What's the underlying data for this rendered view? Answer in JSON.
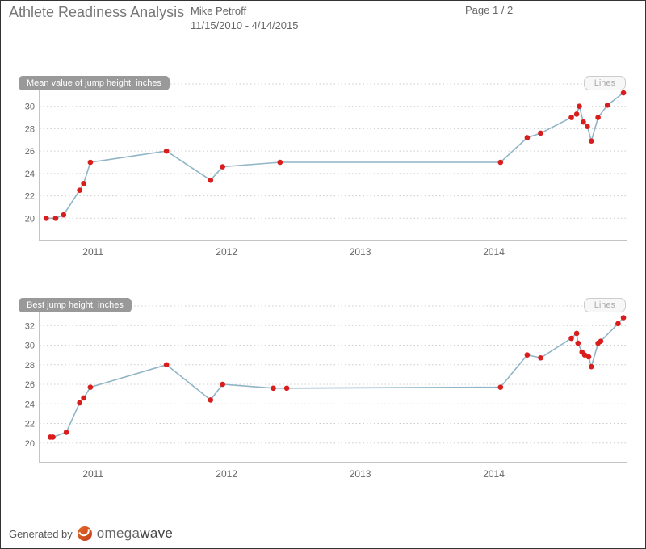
{
  "header": {
    "title": "Athlete Readiness Analysis",
    "athlete": "Mike Petroff",
    "date_range": "11/15/2010 - 4/14/2015",
    "page_label": "Page 1 / 2"
  },
  "chart1": {
    "label": "Mean value of jump height, inches",
    "lines_btn": "Lines",
    "type": "line",
    "line_color": "#90b5c7",
    "marker_color": "#d91c1c",
    "grid_color": "#cccccc",
    "axis_color": "#888888",
    "line_width": 1.6,
    "marker_radius": 3.3,
    "ylim": [
      18,
      32
    ],
    "ytick_step": 2,
    "x_start_year": 2010.6,
    "x_end_year": 2015.0,
    "x_ticks": [
      2011,
      2012,
      2013,
      2014
    ],
    "points": [
      {
        "t": 2010.65,
        "y": 20.0
      },
      {
        "t": 2010.72,
        "y": 20.0
      },
      {
        "t": 2010.78,
        "y": 20.3
      },
      {
        "t": 2010.9,
        "y": 22.5
      },
      {
        "t": 2010.93,
        "y": 23.1
      },
      {
        "t": 2010.98,
        "y": 25.0
      },
      {
        "t": 2011.55,
        "y": 26.0
      },
      {
        "t": 2011.88,
        "y": 23.4
      },
      {
        "t": 2011.97,
        "y": 24.6
      },
      {
        "t": 2012.4,
        "y": 25.0
      },
      {
        "t": 2014.05,
        "y": 25.0
      },
      {
        "t": 2014.25,
        "y": 27.2
      },
      {
        "t": 2014.35,
        "y": 27.6
      },
      {
        "t": 2014.58,
        "y": 29.0
      },
      {
        "t": 2014.62,
        "y": 29.3
      },
      {
        "t": 2014.64,
        "y": 30.0
      },
      {
        "t": 2014.67,
        "y": 28.6
      },
      {
        "t": 2014.7,
        "y": 28.2
      },
      {
        "t": 2014.73,
        "y": 26.9
      },
      {
        "t": 2014.78,
        "y": 29.0
      },
      {
        "t": 2014.85,
        "y": 30.1
      },
      {
        "t": 2014.97,
        "y": 31.2
      }
    ]
  },
  "chart2": {
    "label": "Best jump height, inches",
    "lines_btn": "Lines",
    "type": "line",
    "line_color": "#90b5c7",
    "marker_color": "#d91c1c",
    "grid_color": "#cccccc",
    "axis_color": "#888888",
    "line_width": 1.6,
    "marker_radius": 3.3,
    "ylim": [
      18,
      34
    ],
    "ytick_step": 2,
    "x_start_year": 2010.6,
    "x_end_year": 2015.0,
    "x_ticks": [
      2011,
      2012,
      2013,
      2014
    ],
    "points": [
      {
        "t": 2010.68,
        "y": 20.6
      },
      {
        "t": 2010.7,
        "y": 20.6
      },
      {
        "t": 2010.8,
        "y": 21.1
      },
      {
        "t": 2010.9,
        "y": 24.1
      },
      {
        "t": 2010.93,
        "y": 24.6
      },
      {
        "t": 2010.98,
        "y": 25.7
      },
      {
        "t": 2011.55,
        "y": 28.0
      },
      {
        "t": 2011.88,
        "y": 24.4
      },
      {
        "t": 2011.97,
        "y": 26.0
      },
      {
        "t": 2012.35,
        "y": 25.6
      },
      {
        "t": 2012.45,
        "y": 25.6
      },
      {
        "t": 2014.05,
        "y": 25.7
      },
      {
        "t": 2014.25,
        "y": 29.0
      },
      {
        "t": 2014.35,
        "y": 28.7
      },
      {
        "t": 2014.58,
        "y": 30.7
      },
      {
        "t": 2014.62,
        "y": 31.2
      },
      {
        "t": 2014.63,
        "y": 30.2
      },
      {
        "t": 2014.66,
        "y": 29.3
      },
      {
        "t": 2014.68,
        "y": 29.0
      },
      {
        "t": 2014.71,
        "y": 28.8
      },
      {
        "t": 2014.73,
        "y": 27.8
      },
      {
        "t": 2014.78,
        "y": 30.2
      },
      {
        "t": 2014.8,
        "y": 30.4
      },
      {
        "t": 2014.93,
        "y": 32.2
      },
      {
        "t": 2014.97,
        "y": 32.8
      }
    ]
  },
  "footer": {
    "generated_label": "Generated by",
    "brand_prefix": "omega",
    "brand_suffix": "wave"
  }
}
